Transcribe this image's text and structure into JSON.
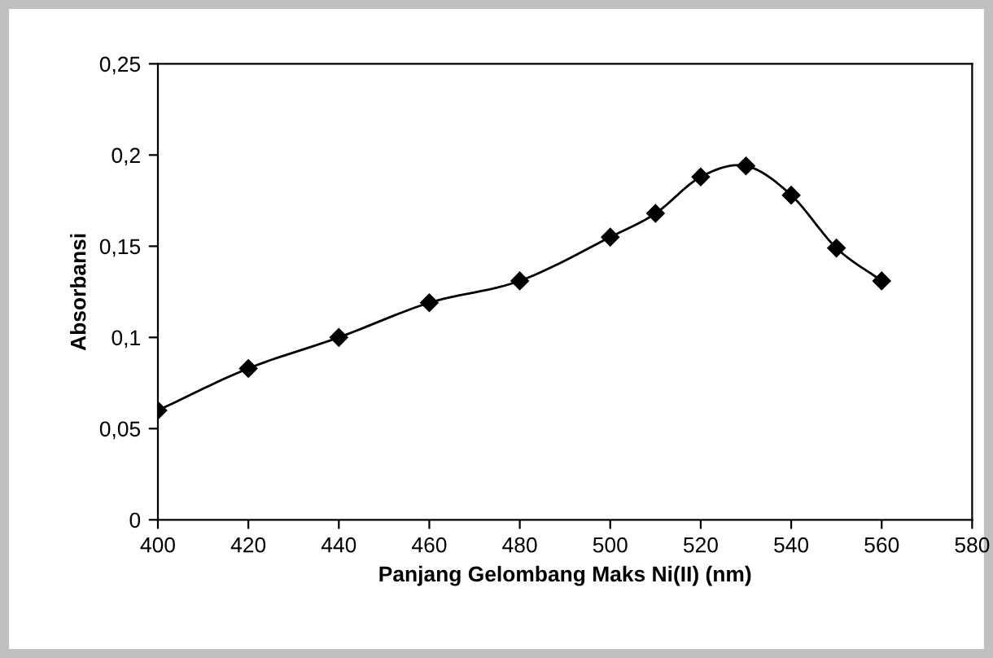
{
  "chart_data": {
    "type": "line",
    "xlabel": "Panjang Gelombang Maks Ni(II) (nm)",
    "ylabel": "Absorbansi",
    "x": [
      400,
      420,
      440,
      460,
      480,
      500,
      510,
      520,
      530,
      540,
      550,
      560
    ],
    "series": [
      {
        "color": "#000000",
        "values": [
          0.06,
          0.083,
          0.1,
          0.119,
          0.131,
          0.155,
          0.168,
          0.188,
          0.194,
          0.178,
          0.149,
          0.131
        ]
      }
    ],
    "xlim": [
      400,
      580
    ],
    "xticks": [
      400,
      420,
      440,
      460,
      480,
      500,
      520,
      540,
      560,
      580
    ],
    "ylim": [
      0,
      0.25
    ],
    "yticks": [
      0,
      {
        "value": 0.05,
        "label": "0,05"
      },
      {
        "value": 0.1,
        "label": "0,1"
      },
      {
        "value": 0.15,
        "label": "0,15"
      },
      {
        "value": 0.2,
        "label": "0,2"
      },
      {
        "value": 0.25,
        "label": "0,25"
      }
    ],
    "marker": "diamond",
    "line_style": "solid",
    "grid": false,
    "legend": false
  }
}
